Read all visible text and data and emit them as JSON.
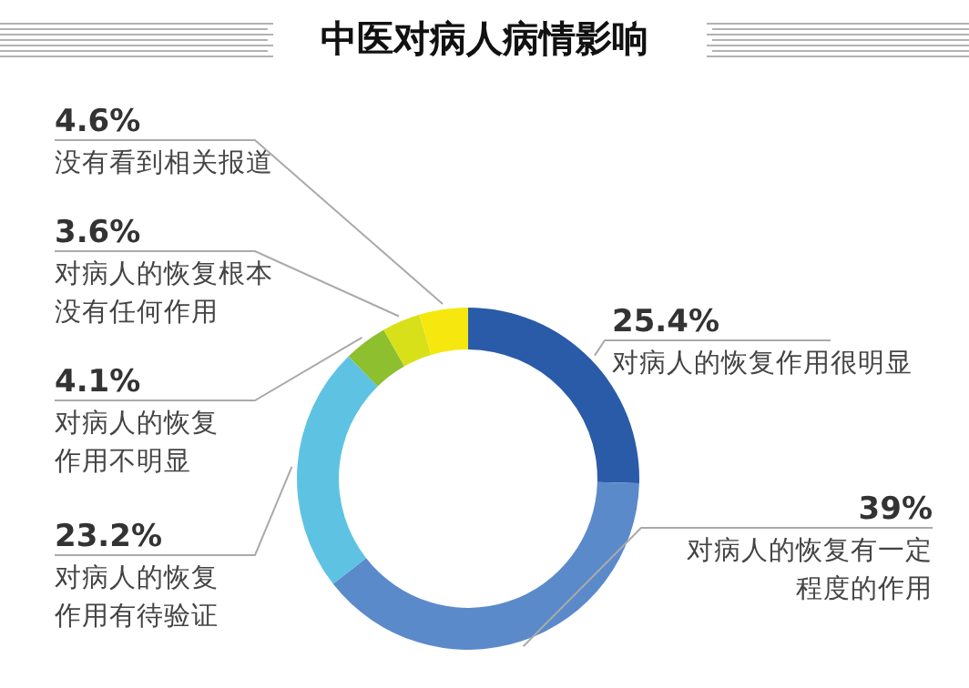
{
  "chart_data": {
    "type": "donut",
    "title": "中医对病人病情影响",
    "categories": [
      "对病人的恢复作用很明显",
      "对病人的恢复有一定程度的作用",
      "对病人的恢复作用有待验证",
      "对病人的恢复作用不明显",
      "对病人的恢复根本没有任何作用",
      "没有看到相关报道"
    ],
    "values": [
      25.4,
      39,
      23.2,
      4.1,
      3.6,
      4.6
    ],
    "value_labels": [
      "25.4%",
      "39%",
      "23.2%",
      "4.1%",
      "3.6%",
      "4.6%"
    ],
    "colors": [
      "#2a5ba8",
      "#5b8acb",
      "#5ec3e3",
      "#8dbf2e",
      "#d8e01a",
      "#f6e80f"
    ]
  }
}
